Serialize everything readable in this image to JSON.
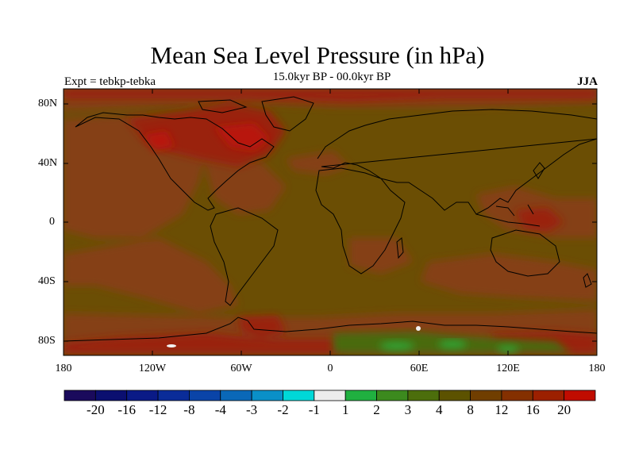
{
  "title": "Mean Sea Level Pressure (in hPa)",
  "subtitle": "15.0kyr BP - 00.0kyr BP",
  "left_label": "Expt = tebkp-tebka",
  "right_label": "JJA",
  "lat_labels": [
    "80N",
    "40N",
    "0",
    "40S",
    "80S"
  ],
  "lon_labels": [
    "180",
    "120W",
    "60W",
    "0",
    "60E",
    "120E",
    "180"
  ],
  "colorbar": {
    "colors": [
      "#1a0a5c",
      "#0b0f70",
      "#0a1a86",
      "#0a2c98",
      "#0a44a8",
      "#0a68b8",
      "#0a90c8",
      "#00d8d8",
      "#ececec",
      "#20b040",
      "#3c8a1e",
      "#4c6e0c",
      "#5c5200",
      "#703e00",
      "#843000",
      "#9c2000",
      "#c00c00"
    ],
    "labels": [
      "-20",
      "-16",
      "-12",
      "-8",
      "-4",
      "-3",
      "-2",
      "-1",
      "1",
      "2",
      "3",
      "4",
      "8",
      "12",
      "16",
      "20"
    ]
  },
  "colors": {
    "background_field": "#6b4e04",
    "orange_anomaly": "#854012",
    "red_anomaly": "#9a2410",
    "strong_red": "#b81808",
    "green_anomaly": "#4a6a10",
    "coastline": "#000000"
  }
}
